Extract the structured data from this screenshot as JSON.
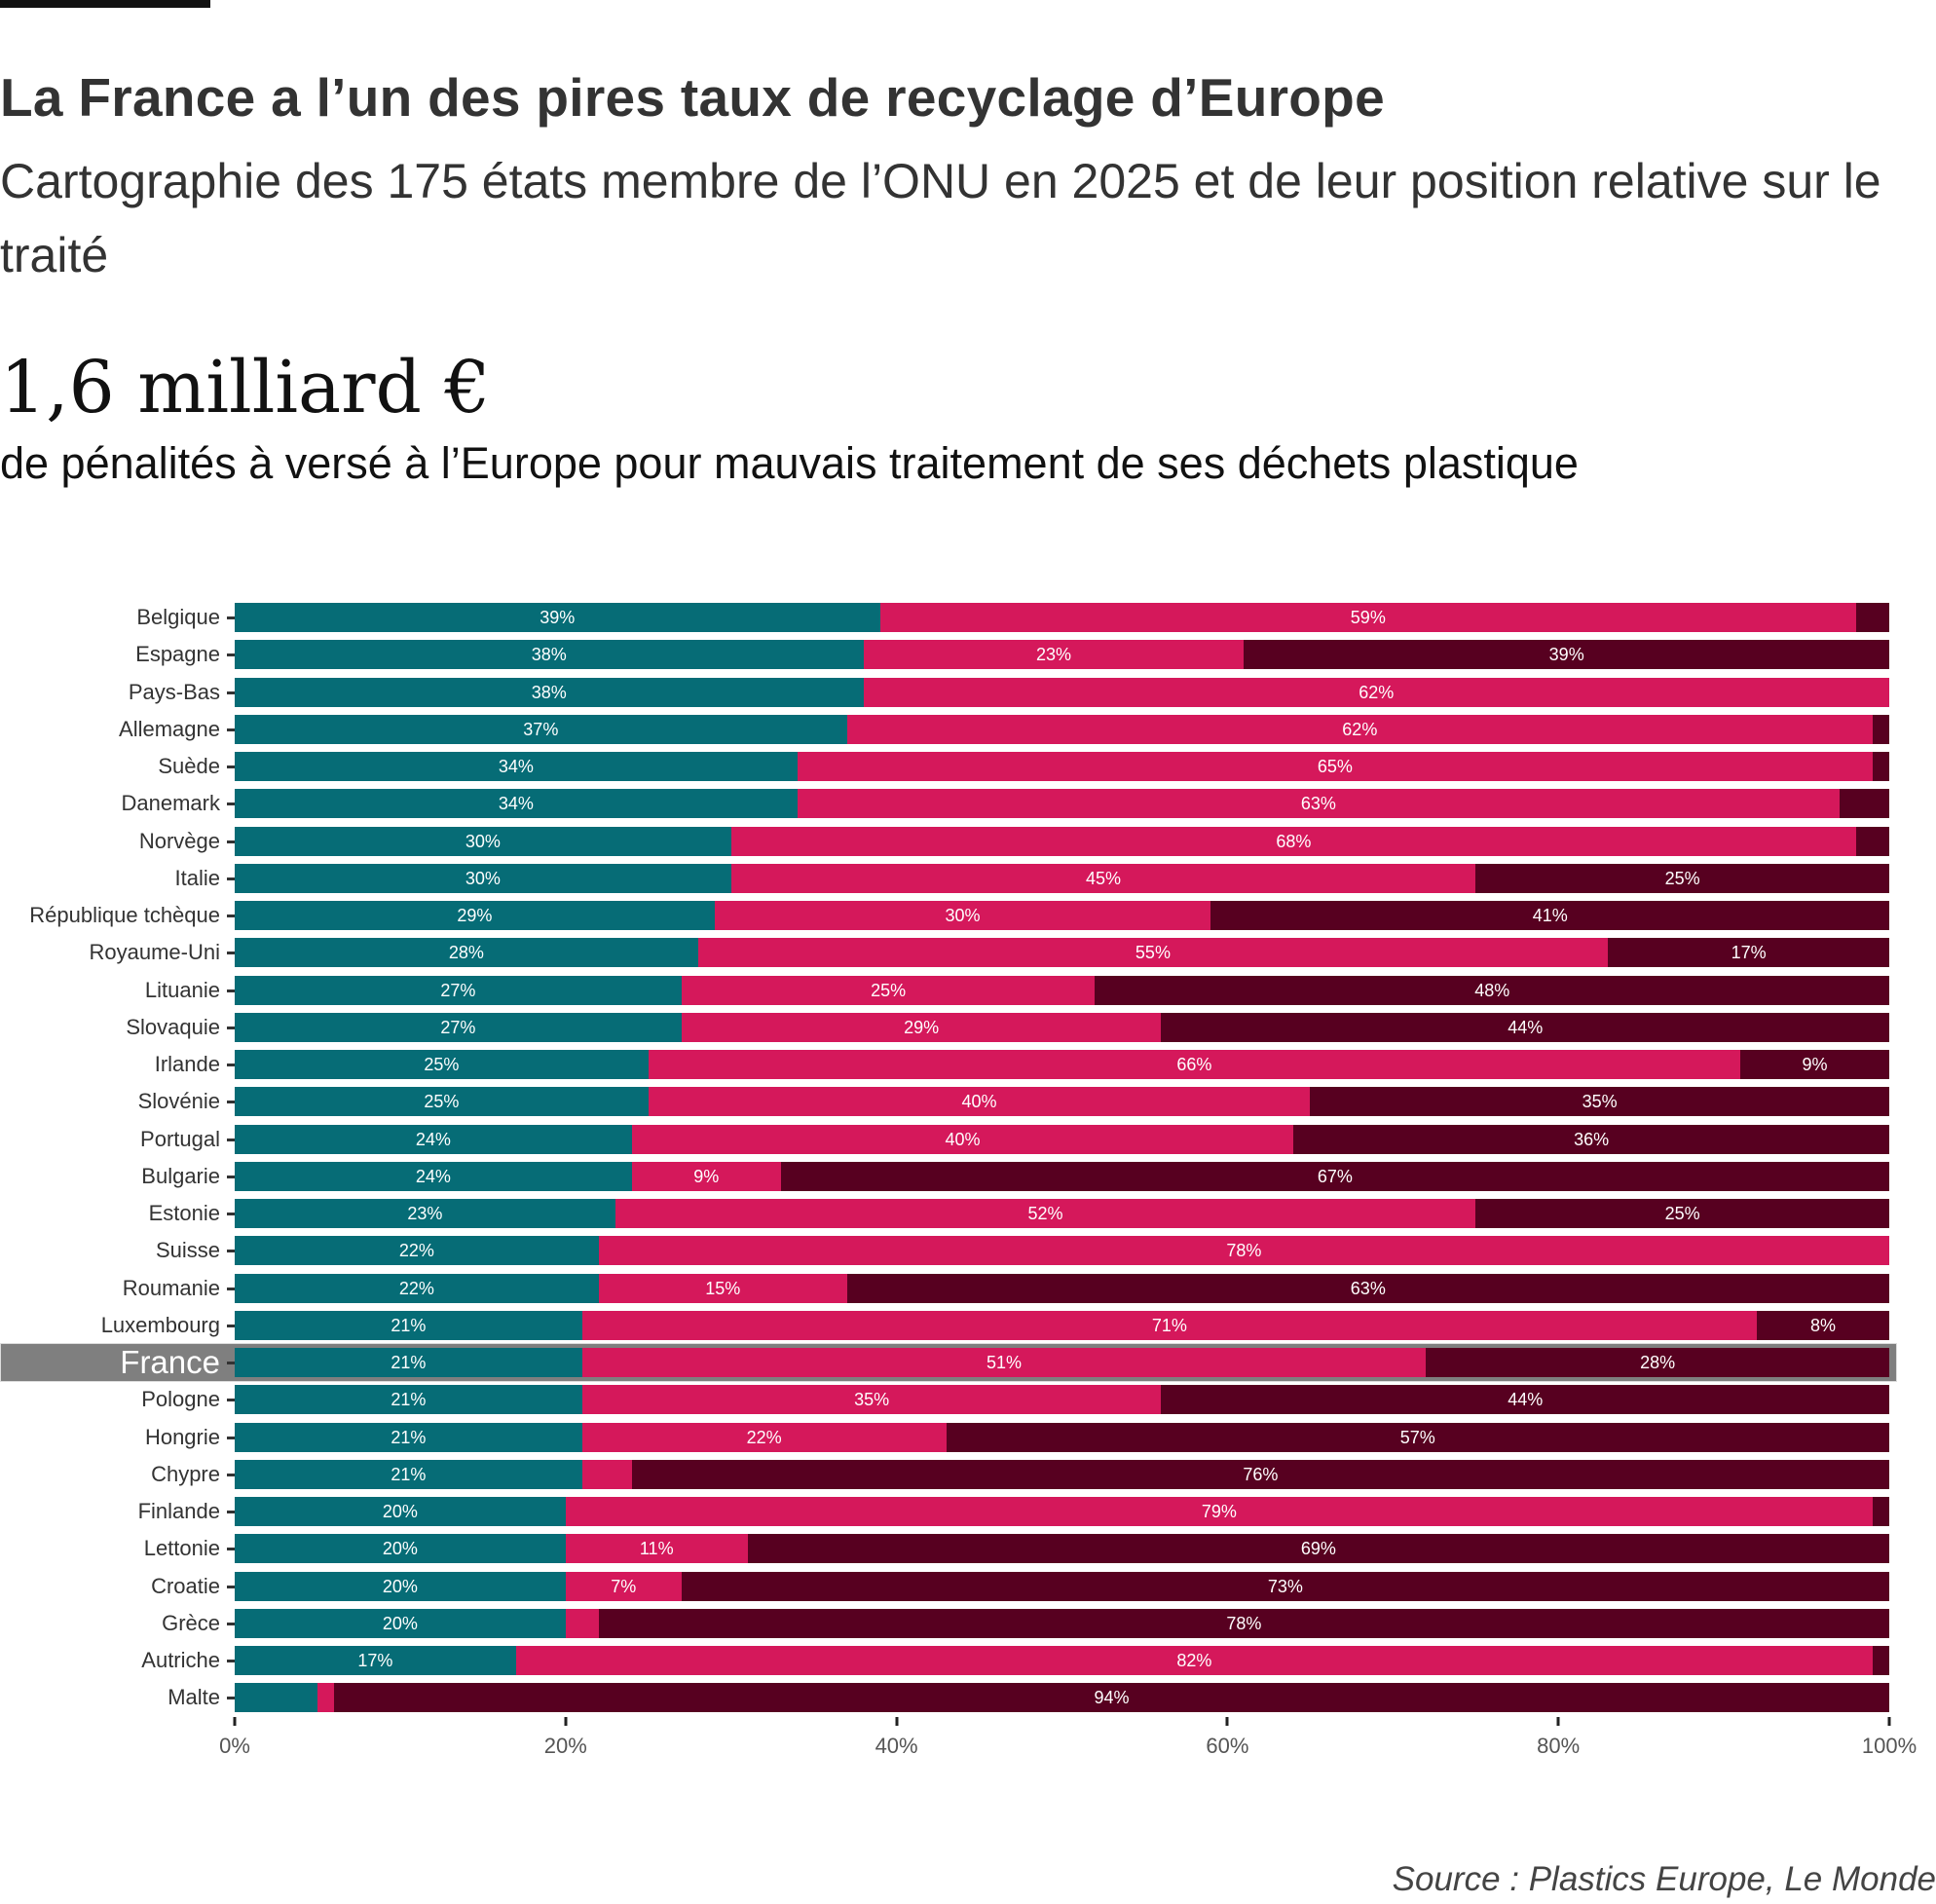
{
  "header": {
    "title": "La France a l’un des pires taux de recyclage d’Europe",
    "subtitle": "Cartographie des 175 états membre de l’ONU en 2025 et de leur position relative sur le traité",
    "big_number": "1,6 milliard €",
    "big_number_caption": "de pénalités à versé à l’Europe pour mauvais traitement de ses  déchets plastique"
  },
  "source": "Source : Plastics Europe, Le Monde",
  "chart_data": {
    "type": "bar",
    "orientation": "horizontal",
    "stacked": true,
    "highlight": "France",
    "xlim": [
      0,
      100
    ],
    "x_ticks": [
      "0%",
      "20%",
      "40%",
      "60%",
      "80%",
      "100%"
    ],
    "grid": false,
    "legend": "none",
    "colors": [
      "#066c76",
      "#d5185b",
      "#570020"
    ],
    "categories": [
      "Belgique",
      "Espagne",
      "Pays-Bas",
      "Allemagne",
      "Suède",
      "Danemark",
      "Norvège",
      "Italie",
      "République tchèque",
      "Royaume-Uni",
      "Lituanie",
      "Slovaquie",
      "Irlande",
      "Slovénie",
      "Portugal",
      "Bulgarie",
      "Estonie",
      "Suisse",
      "Roumanie",
      "Luxembourg",
      "France",
      "Pologne",
      "Hongrie",
      "Chypre",
      "Finlande",
      "Lettonie",
      "Croatie",
      "Grèce",
      "Autriche",
      "Malte"
    ],
    "series": [
      {
        "values": [
          39,
          38,
          38,
          37,
          34,
          34,
          30,
          30,
          29,
          28,
          27,
          27,
          25,
          25,
          24,
          24,
          23,
          22,
          22,
          21,
          21,
          21,
          21,
          21,
          20,
          20,
          20,
          20,
          17,
          5
        ]
      },
      {
        "values": [
          59,
          23,
          62,
          62,
          65,
          63,
          68,
          45,
          30,
          55,
          25,
          29,
          66,
          40,
          40,
          9,
          52,
          78,
          15,
          71,
          51,
          35,
          22,
          3,
          79,
          11,
          7,
          2,
          82,
          1
        ]
      },
      {
        "values": [
          2,
          39,
          0,
          1,
          1,
          3,
          2,
          25,
          41,
          17,
          48,
          44,
          9,
          35,
          36,
          67,
          25,
          0,
          63,
          8,
          28,
          44,
          57,
          76,
          1,
          69,
          73,
          78,
          1,
          94
        ]
      }
    ]
  }
}
